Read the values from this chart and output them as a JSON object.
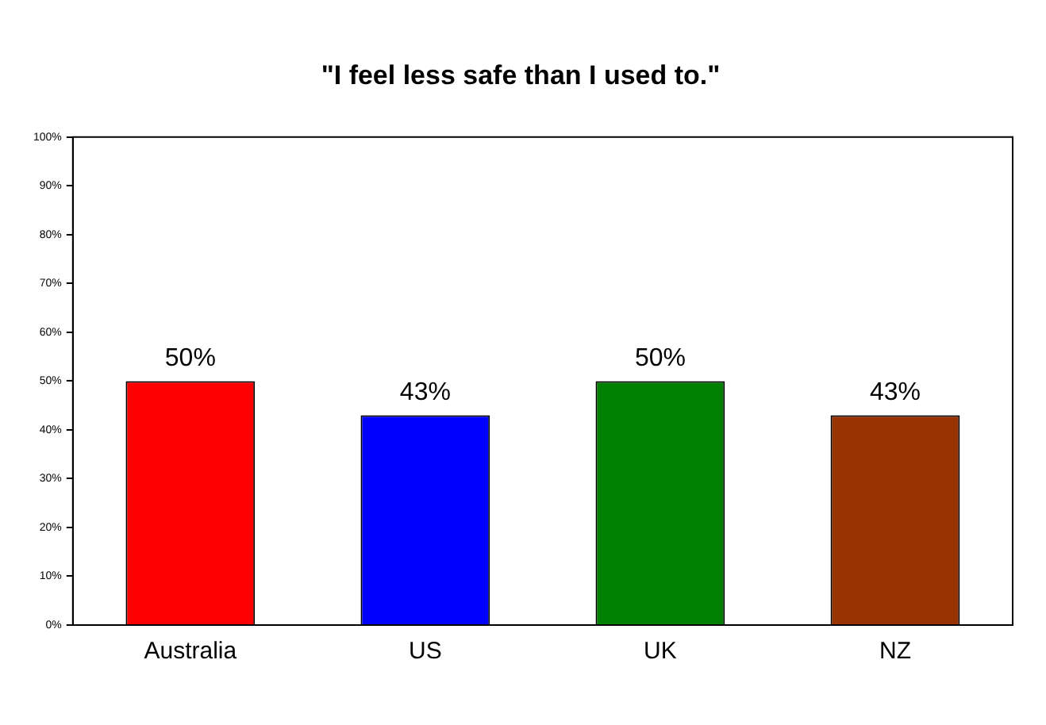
{
  "chart_data": {
    "type": "bar",
    "title": "\"I feel less safe than I used to.\"",
    "categories": [
      "Australia",
      "US",
      "UK",
      "NZ"
    ],
    "values": [
      50,
      43,
      50,
      43
    ],
    "colors": [
      "#ff0000",
      "#0000ff",
      "#008000",
      "#993300"
    ],
    "value_labels": [
      "50%",
      "43%",
      "50%",
      "43%"
    ],
    "ylim": [
      0,
      100
    ],
    "yticks": [
      {
        "value": 0,
        "label": "0%"
      },
      {
        "value": 10,
        "label": "10%"
      },
      {
        "value": 20,
        "label": "20%"
      },
      {
        "value": 30,
        "label": "30%"
      },
      {
        "value": 40,
        "label": "40%"
      },
      {
        "value": 50,
        "label": "50%"
      },
      {
        "value": 60,
        "label": "60%"
      },
      {
        "value": 70,
        "label": "70%"
      },
      {
        "value": 80,
        "label": "80%"
      },
      {
        "value": 90,
        "label": "90%"
      },
      {
        "value": 100,
        "label": "100%"
      }
    ],
    "grid": false,
    "legend": false
  }
}
